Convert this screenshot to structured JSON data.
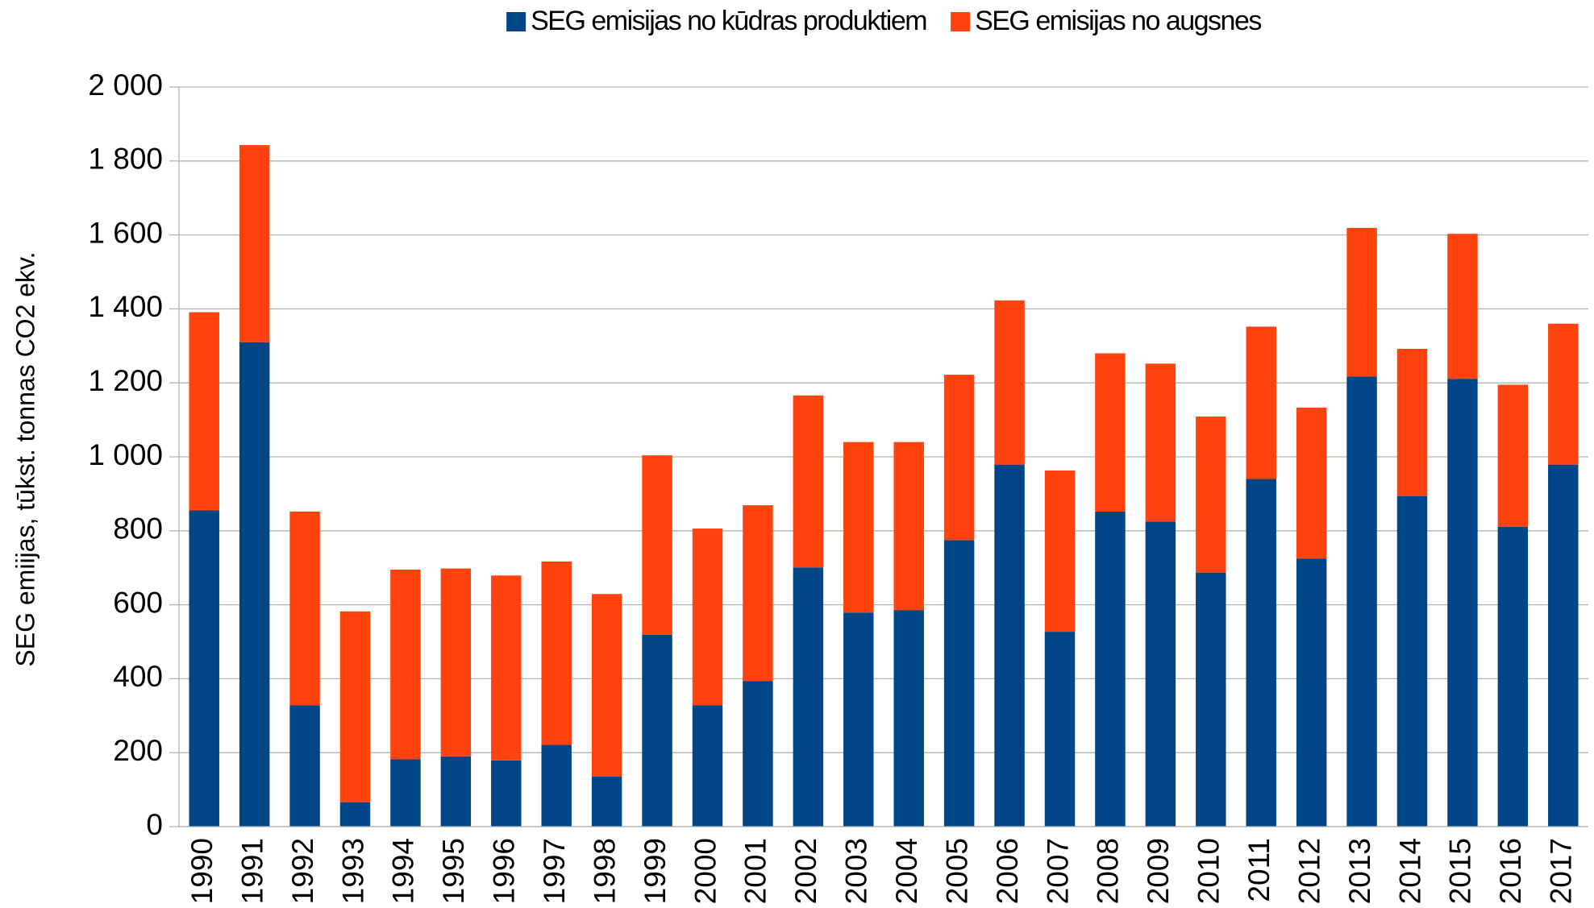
{
  "chart_data": {
    "type": "stacked_bar",
    "y_label": "SEG emiijas, tūkst. tonnas CO2 ekv.",
    "categories": [
      "1990",
      "1991",
      "1992",
      "1993",
      "1994",
      "1995",
      "1996",
      "1997",
      "1998",
      "1999",
      "2000",
      "2001",
      "2002",
      "2003",
      "2004",
      "2005",
      "2006",
      "2007",
      "2008",
      "2009",
      "2010",
      "2011",
      "2012",
      "2013",
      "2014",
      "2015",
      "2016",
      "2017"
    ],
    "series": [
      {
        "name": "SEG emisijas no kūdras produktiem",
        "color": "#004586",
        "values": [
          855,
          1310,
          328,
          66,
          182,
          190,
          179,
          221,
          135,
          519,
          328,
          394,
          701,
          579,
          585,
          775,
          979,
          527,
          852,
          825,
          687,
          940,
          725,
          1217,
          894,
          1211,
          811,
          979
        ]
      },
      {
        "name": "SEG emisijas no augsnes",
        "color": "#ff420e",
        "values": [
          536,
          533,
          524,
          516,
          513,
          508,
          500,
          496,
          494,
          485,
          478,
          475,
          465,
          461,
          455,
          447,
          444,
          436,
          428,
          427,
          422,
          412,
          408,
          402,
          398,
          392,
          384,
          381
        ]
      }
    ],
    "ylim": [
      0,
      2000
    ],
    "yticks": [
      0,
      200,
      400,
      600,
      800,
      {
        "value": 1000,
        "label": "1 000"
      },
      {
        "value": 1200,
        "label": "1 200"
      },
      {
        "value": 1400,
        "label": "1 400"
      },
      {
        "value": 1600,
        "label": "1 600"
      },
      {
        "value": 1800,
        "label": "1 800"
      },
      {
        "value": 2000,
        "label": "2 000"
      }
    ],
    "grid": true,
    "legend": "top"
  }
}
